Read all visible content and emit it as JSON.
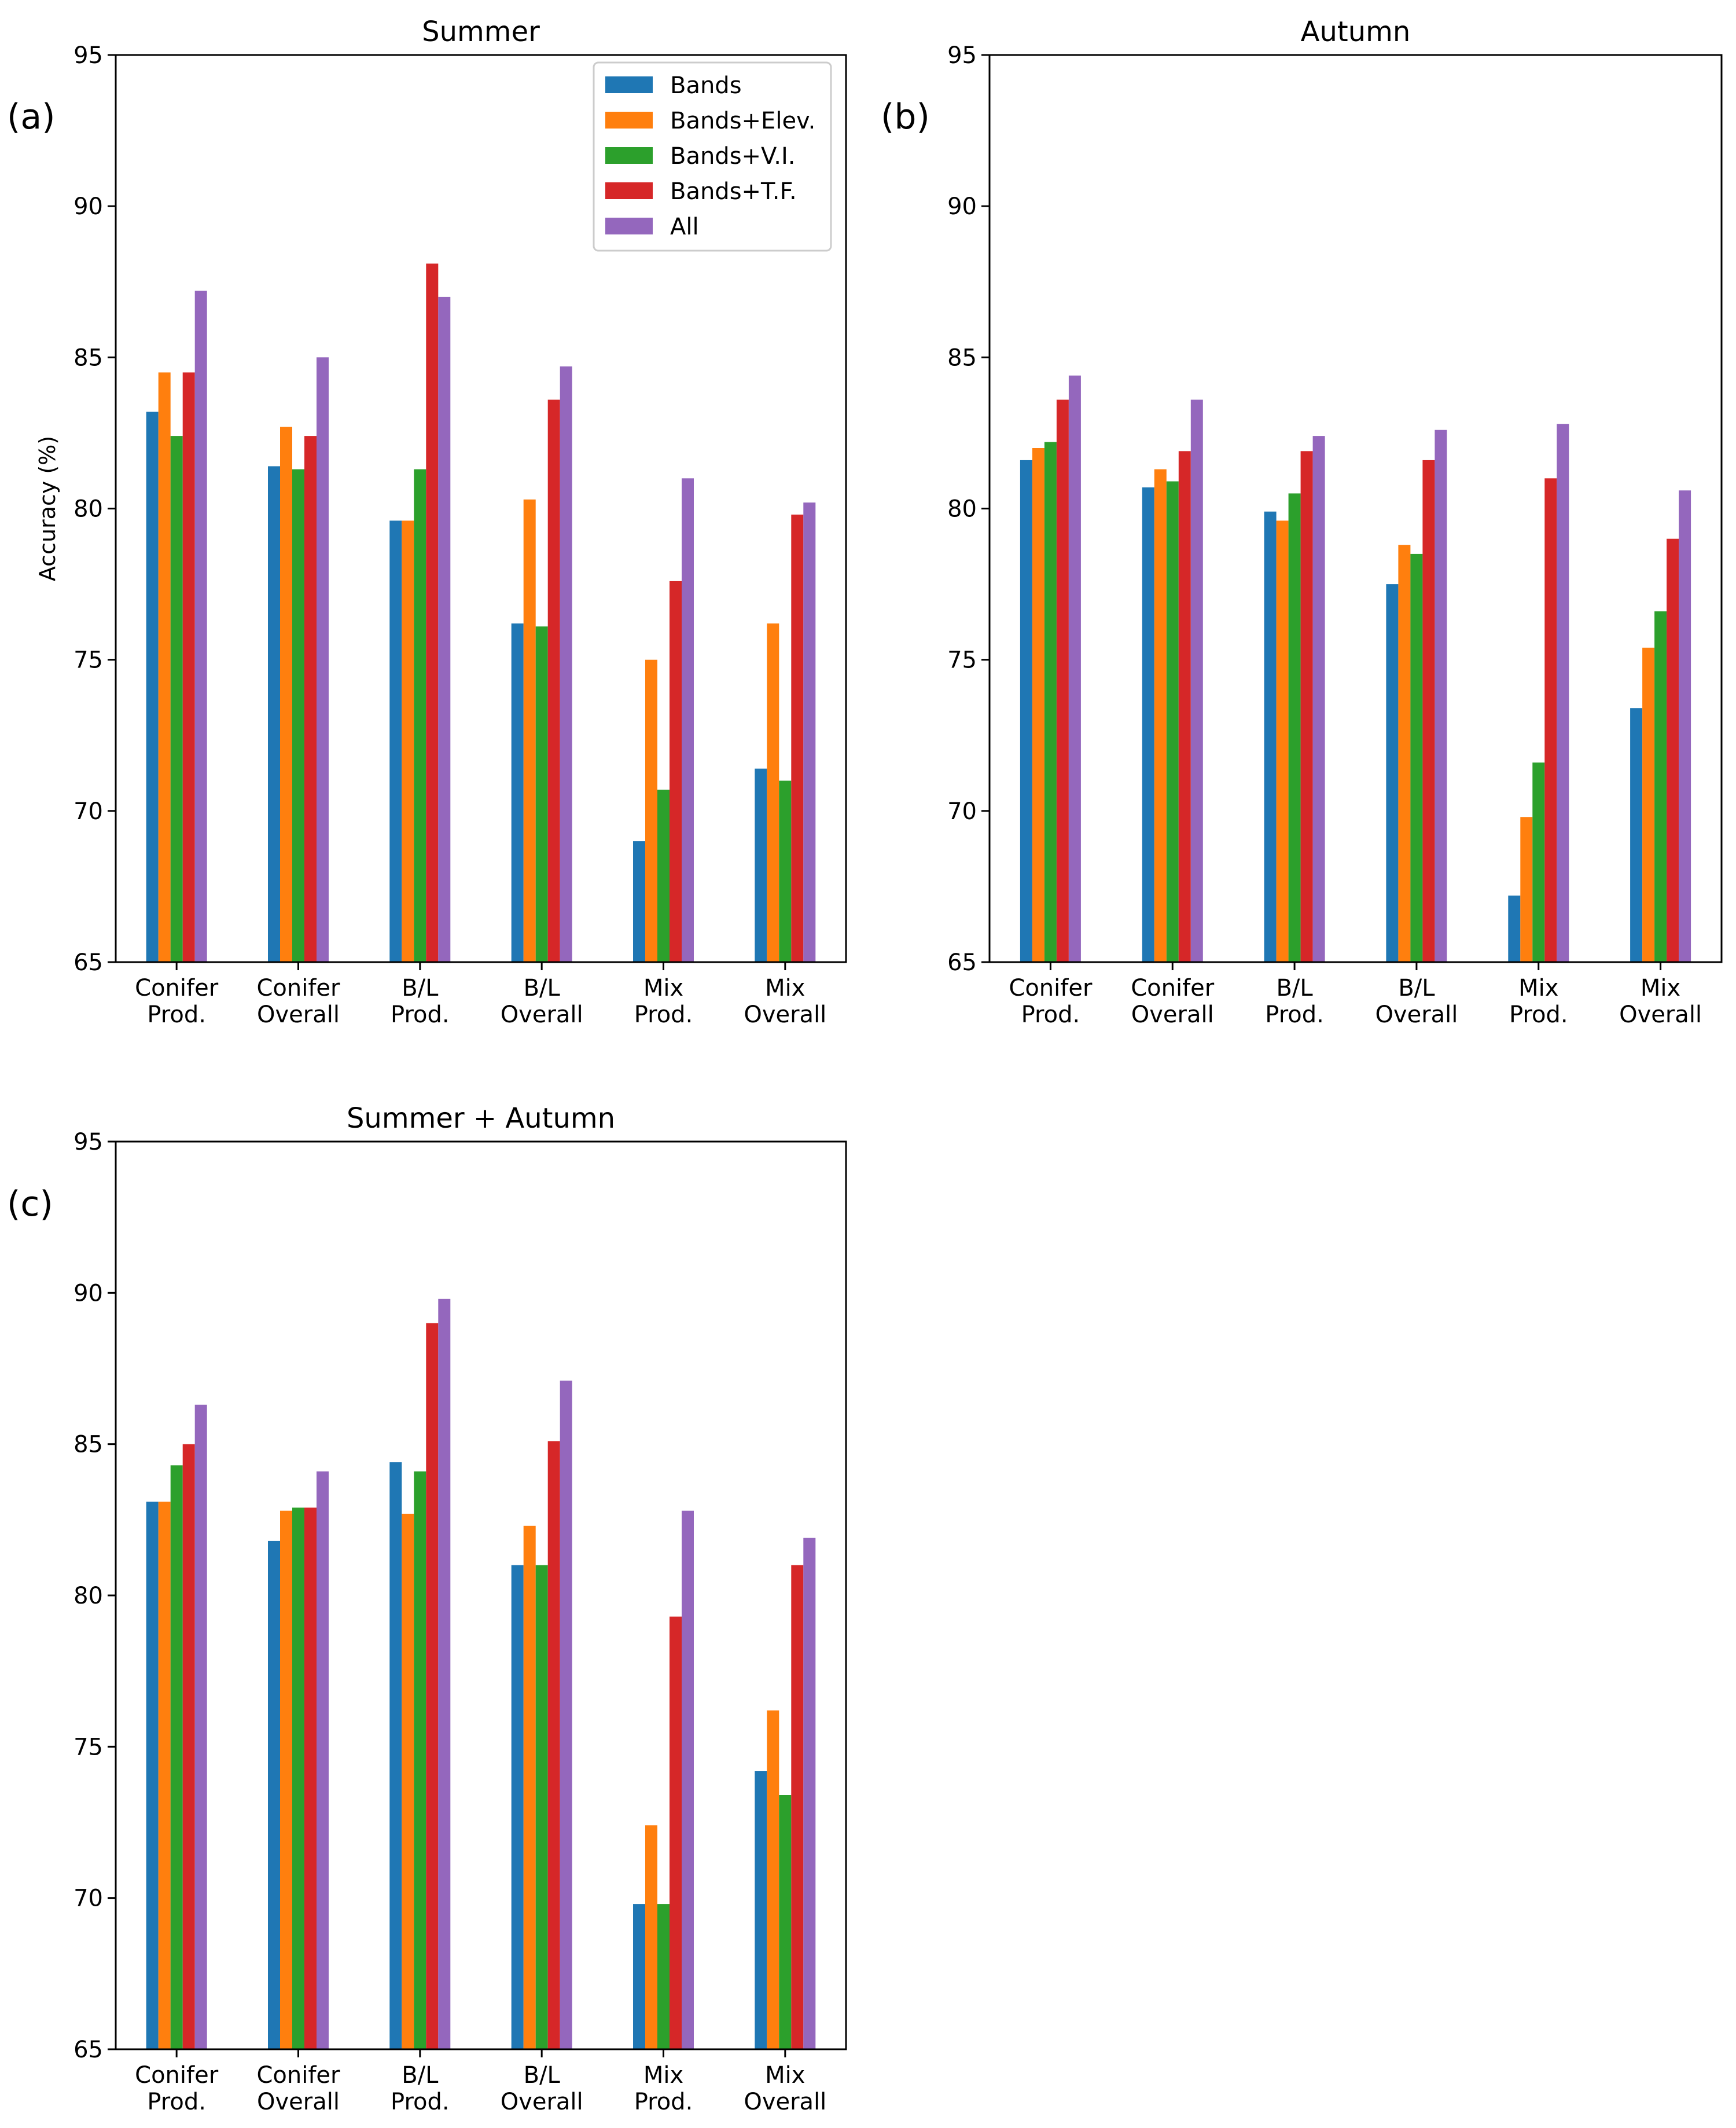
{
  "chart_data": [
    {
      "id": "a",
      "type": "bar",
      "panel_label": "(a)",
      "title": "Summer",
      "ylabel": "Accuracy (%)",
      "xlabel": "",
      "ylim": [
        65,
        95
      ],
      "yticks": [
        65,
        70,
        75,
        80,
        85,
        90,
        95
      ],
      "categories": [
        [
          "Conifer",
          "Prod."
        ],
        [
          "Conifer",
          "Overall"
        ],
        [
          "B/L",
          "Prod."
        ],
        [
          "B/L",
          "Overall"
        ],
        [
          "Mix",
          "Prod."
        ],
        [
          "Mix",
          "Overall"
        ]
      ],
      "series": [
        {
          "name": "Bands",
          "values": [
            83.2,
            81.4,
            79.6,
            76.2,
            69.0,
            71.4
          ]
        },
        {
          "name": "Bands+Elev.",
          "values": [
            84.5,
            82.7,
            79.6,
            80.3,
            75.0,
            76.2
          ]
        },
        {
          "name": "Bands+V.I.",
          "values": [
            82.4,
            81.3,
            81.3,
            76.1,
            70.7,
            71.0
          ]
        },
        {
          "name": "Bands+T.F.",
          "values": [
            84.5,
            82.4,
            88.1,
            83.6,
            77.6,
            79.8
          ]
        },
        {
          "name": "All",
          "values": [
            87.2,
            85.0,
            87.0,
            84.7,
            81.0,
            80.2
          ]
        }
      ],
      "legend": "top-right"
    },
    {
      "id": "b",
      "type": "bar",
      "panel_label": "(b)",
      "title": "Autumn",
      "ylabel": "",
      "xlabel": "",
      "ylim": [
        65,
        95
      ],
      "yticks": [
        65,
        70,
        75,
        80,
        85,
        90,
        95
      ],
      "categories": [
        [
          "Conifer",
          "Prod."
        ],
        [
          "Conifer",
          "Overall"
        ],
        [
          "B/L",
          "Prod."
        ],
        [
          "B/L",
          "Overall"
        ],
        [
          "Mix",
          "Prod."
        ],
        [
          "Mix",
          "Overall"
        ]
      ],
      "series": [
        {
          "name": "Bands",
          "values": [
            81.6,
            80.7,
            79.9,
            77.5,
            67.2,
            73.4
          ]
        },
        {
          "name": "Bands+Elev.",
          "values": [
            82.0,
            81.3,
            79.6,
            78.8,
            69.8,
            75.4
          ]
        },
        {
          "name": "Bands+V.I.",
          "values": [
            82.2,
            80.9,
            80.5,
            78.5,
            71.6,
            76.6
          ]
        },
        {
          "name": "Bands+T.F.",
          "values": [
            83.6,
            81.9,
            81.9,
            81.6,
            81.0,
            79.0
          ]
        },
        {
          "name": "All",
          "values": [
            84.4,
            83.6,
            82.4,
            82.6,
            82.8,
            80.6
          ]
        }
      ]
    },
    {
      "id": "c",
      "type": "bar",
      "panel_label": "(c)",
      "title": "Summer + Autumn",
      "ylabel": "",
      "xlabel": "",
      "ylim": [
        65,
        95
      ],
      "yticks": [
        65,
        70,
        75,
        80,
        85,
        90,
        95
      ],
      "categories": [
        [
          "Conifer",
          "Prod."
        ],
        [
          "Conifer",
          "Overall"
        ],
        [
          "B/L",
          "Prod."
        ],
        [
          "B/L",
          "Overall"
        ],
        [
          "Mix",
          "Prod."
        ],
        [
          "Mix",
          "Overall"
        ]
      ],
      "series": [
        {
          "name": "Bands",
          "values": [
            83.1,
            81.8,
            84.4,
            81.0,
            69.8,
            74.2
          ]
        },
        {
          "name": "Bands+Elev.",
          "values": [
            83.1,
            82.8,
            82.7,
            82.3,
            72.4,
            76.2
          ]
        },
        {
          "name": "Bands+V.I.",
          "values": [
            84.3,
            82.9,
            84.1,
            81.0,
            69.8,
            73.4
          ]
        },
        {
          "name": "Bands+T.F.",
          "values": [
            85.0,
            82.9,
            89.0,
            85.1,
            79.3,
            81.0
          ]
        },
        {
          "name": "All",
          "values": [
            86.3,
            84.1,
            89.8,
            87.1,
            82.8,
            81.9
          ]
        }
      ]
    }
  ],
  "colors": {
    "Bands": "#1f77b4",
    "Bands+Elev.": "#ff7f0e",
    "Bands+V.I.": "#2ca02c",
    "Bands+T.F.": "#d62728",
    "All": "#9467bd"
  }
}
